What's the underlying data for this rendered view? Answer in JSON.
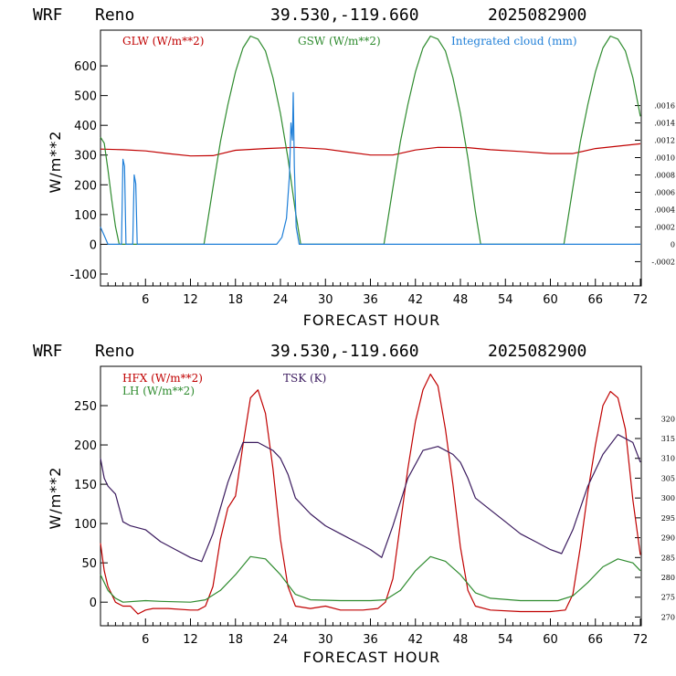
{
  "colors": {
    "red": "#c00000",
    "green": "#2e8b2e",
    "blue": "#1f7fd8",
    "purple": "#3a1a5e"
  },
  "chart_data": [
    {
      "type": "line",
      "header": {
        "model": "WRF",
        "site": "Reno",
        "coords": "39.530,-119.660",
        "date": "2025082900"
      },
      "xlabel": "FORECAST HOUR",
      "ylabel": "W/m**2",
      "xlim": [
        0,
        72
      ],
      "ylim": [
        -140,
        720
      ],
      "x_ticks": [
        "6",
        "12",
        "18",
        "24",
        "30",
        "36",
        "42",
        "48",
        "54",
        "60",
        "66",
        "72"
      ],
      "y_ticks": [
        "-100",
        "0",
        "100",
        "200",
        "300",
        "400",
        "500",
        "600"
      ],
      "y2_label": "",
      "y2lim": [
        -0.00048,
        0.00247
      ],
      "y2_ticks": [
        ".0016",
        ".0014",
        ".0012",
        ".0010",
        ".0008",
        ".0006",
        ".0004",
        ".0002",
        "0",
        "-.0002"
      ],
      "y2_tick_values": [
        0.0016,
        0.0014,
        0.0012,
        0.001,
        0.0008,
        0.0006,
        0.0004,
        0.0002,
        0,
        -0.0002
      ],
      "series": [
        {
          "name": "GLW (W/m**2)",
          "axis": "left",
          "color": "red",
          "points": [
            [
              0,
              320
            ],
            [
              3,
              318
            ],
            [
              6,
              314
            ],
            [
              9,
              305
            ],
            [
              12,
              297
            ],
            [
              15,
              298
            ],
            [
              18,
              316
            ],
            [
              22,
              322
            ],
            [
              26,
              326
            ],
            [
              30,
              320
            ],
            [
              33,
              310
            ],
            [
              36,
              300
            ],
            [
              39,
              300
            ],
            [
              42,
              317
            ],
            [
              45,
              326
            ],
            [
              49,
              325
            ],
            [
              52,
              318
            ],
            [
              56,
              312
            ],
            [
              60,
              305
            ],
            [
              63,
              305
            ],
            [
              66,
              322
            ],
            [
              69,
              330
            ],
            [
              72,
              338
            ]
          ]
        },
        {
          "name": "GSW (W/m**2)",
          "axis": "left",
          "color": "green",
          "points": [
            [
              0,
              360
            ],
            [
              0.5,
              340
            ],
            [
              1,
              250
            ],
            [
              1.5,
              150
            ],
            [
              2,
              60
            ],
            [
              2.5,
              0
            ],
            [
              13.8,
              0
            ],
            [
              15,
              190
            ],
            [
              16,
              345
            ],
            [
              17,
              470
            ],
            [
              18,
              580
            ],
            [
              19,
              660
            ],
            [
              20,
              700
            ],
            [
              21,
              690
            ],
            [
              22,
              650
            ],
            [
              23,
              560
            ],
            [
              24,
              440
            ],
            [
              25,
              290
            ],
            [
              26,
              110
            ],
            [
              26.7,
              0
            ],
            [
              37.8,
              0
            ],
            [
              39,
              190
            ],
            [
              40,
              345
            ],
            [
              41,
              470
            ],
            [
              42,
              580
            ],
            [
              43,
              660
            ],
            [
              44,
              700
            ],
            [
              45,
              690
            ],
            [
              46,
              650
            ],
            [
              47,
              560
            ],
            [
              48,
              440
            ],
            [
              49,
              290
            ],
            [
              50,
              110
            ],
            [
              50.7,
              0
            ],
            [
              61.8,
              0
            ],
            [
              63,
              190
            ],
            [
              64,
              345
            ],
            [
              65,
              470
            ],
            [
              66,
              580
            ],
            [
              67,
              660
            ],
            [
              68,
              700
            ],
            [
              69,
              690
            ],
            [
              70,
              650
            ],
            [
              71,
              560
            ],
            [
              72,
              430
            ]
          ]
        },
        {
          "name": "Integrated cloud (mm)",
          "axis": "right",
          "color": "blue",
          "points": [
            [
              0,
              0.0002
            ],
            [
              0.5,
              0.0001
            ],
            [
              1,
              0
            ],
            [
              2.8,
              0
            ],
            [
              3.0,
              0.00098
            ],
            [
              3.2,
              0.0009
            ],
            [
              3.4,
              0
            ],
            [
              4.3,
              0
            ],
            [
              4.5,
              0.0008
            ],
            [
              4.7,
              0.0007
            ],
            [
              4.9,
              0
            ],
            [
              23.5,
              0
            ],
            [
              24.2,
              8e-05
            ],
            [
              24.8,
              0.0003
            ],
            [
              25.2,
              0.0008
            ],
            [
              25.4,
              0.0014
            ],
            [
              25.6,
              0.0012
            ],
            [
              25.7,
              0.00175
            ],
            [
              25.85,
              0.0009
            ],
            [
              26.1,
              0.0002
            ],
            [
              26.5,
              0
            ],
            [
              72,
              0
            ]
          ]
        }
      ]
    },
    {
      "type": "line",
      "header": {
        "model": "WRF",
        "site": "Reno",
        "coords": "39.530,-119.660",
        "date": "2025082900"
      },
      "xlabel": "FORECAST HOUR",
      "ylabel": "W/m**2",
      "xlim": [
        0,
        72
      ],
      "ylim": [
        -30,
        300
      ],
      "x_ticks": [
        "6",
        "12",
        "18",
        "24",
        "30",
        "36",
        "42",
        "48",
        "54",
        "60",
        "66",
        "72"
      ],
      "y_ticks": [
        "0",
        "50",
        "100",
        "150",
        "200",
        "250"
      ],
      "y2lim": [
        267.8,
        333.2
      ],
      "y2_ticks": [
        "320",
        "315",
        "310",
        "305",
        "300",
        "295",
        "290",
        "285",
        "280",
        "275",
        "270"
      ],
      "y2_tick_values": [
        320,
        315,
        310,
        305,
        300,
        295,
        290,
        285,
        280,
        275,
        270
      ],
      "series": [
        {
          "name": "HFX (W/m**2)",
          "axis": "left",
          "color": "red",
          "points": [
            [
              0,
              75
            ],
            [
              0.5,
              40
            ],
            [
              1,
              20
            ],
            [
              2,
              0
            ],
            [
              3,
              -5
            ],
            [
              4,
              -5
            ],
            [
              5,
              -15
            ],
            [
              6,
              -10
            ],
            [
              7,
              -8
            ],
            [
              9,
              -8
            ],
            [
              12,
              -10
            ],
            [
              13,
              -10
            ],
            [
              14,
              -5
            ],
            [
              15,
              20
            ],
            [
              16,
              80
            ],
            [
              17,
              120
            ],
            [
              18,
              135
            ],
            [
              19,
              200
            ],
            [
              20,
              260
            ],
            [
              21,
              270
            ],
            [
              22,
              240
            ],
            [
              23,
              170
            ],
            [
              24,
              80
            ],
            [
              25,
              20
            ],
            [
              26,
              -5
            ],
            [
              28,
              -8
            ],
            [
              30,
              -5
            ],
            [
              32,
              -10
            ],
            [
              35,
              -10
            ],
            [
              37,
              -8
            ],
            [
              38,
              0
            ],
            [
              39,
              30
            ],
            [
              40,
              100
            ],
            [
              41,
              170
            ],
            [
              42,
              230
            ],
            [
              43,
              270
            ],
            [
              44,
              290
            ],
            [
              45,
              275
            ],
            [
              46,
              220
            ],
            [
              47,
              150
            ],
            [
              48,
              70
            ],
            [
              49,
              15
            ],
            [
              50,
              -5
            ],
            [
              52,
              -10
            ],
            [
              56,
              -12
            ],
            [
              60,
              -12
            ],
            [
              62,
              -10
            ],
            [
              63,
              10
            ],
            [
              64,
              70
            ],
            [
              65,
              140
            ],
            [
              66,
              200
            ],
            [
              67,
              250
            ],
            [
              68,
              268
            ],
            [
              69,
              260
            ],
            [
              70,
              220
            ],
            [
              71,
              130
            ],
            [
              72,
              60
            ]
          ]
        },
        {
          "name": "LH (W/m**2)",
          "axis": "left",
          "color": "green",
          "points": [
            [
              0,
              35
            ],
            [
              1,
              15
            ],
            [
              2,
              5
            ],
            [
              3,
              0
            ],
            [
              6,
              2
            ],
            [
              8,
              1
            ],
            [
              12,
              0
            ],
            [
              14,
              3
            ],
            [
              16,
              15
            ],
            [
              18,
              35
            ],
            [
              20,
              58
            ],
            [
              22,
              55
            ],
            [
              24,
              35
            ],
            [
              26,
              10
            ],
            [
              28,
              3
            ],
            [
              32,
              2
            ],
            [
              36,
              2
            ],
            [
              38,
              3
            ],
            [
              40,
              15
            ],
            [
              42,
              40
            ],
            [
              44,
              58
            ],
            [
              46,
              52
            ],
            [
              48,
              35
            ],
            [
              50,
              12
            ],
            [
              52,
              5
            ],
            [
              56,
              2
            ],
            [
              61,
              2
            ],
            [
              63,
              8
            ],
            [
              65,
              25
            ],
            [
              67,
              45
            ],
            [
              69,
              55
            ],
            [
              71,
              50
            ],
            [
              72,
              40
            ]
          ]
        },
        {
          "name": "TSK (K)",
          "axis": "right",
          "color": "purple",
          "points": [
            [
              0,
              310
            ],
            [
              0.5,
              305
            ],
            [
              1,
              303
            ],
            [
              2,
              301
            ],
            [
              3,
              294
            ],
            [
              4,
              293
            ],
            [
              6,
              292
            ],
            [
              8,
              289
            ],
            [
              10,
              287
            ],
            [
              12,
              285
            ],
            [
              13.5,
              284
            ],
            [
              15,
              291
            ],
            [
              17,
              304
            ],
            [
              19,
              314
            ],
            [
              21,
              314
            ],
            [
              23,
              312
            ],
            [
              24,
              310
            ],
            [
              25,
              306
            ],
            [
              26,
              300
            ],
            [
              28,
              296
            ],
            [
              30,
              293
            ],
            [
              32,
              291
            ],
            [
              34,
              289
            ],
            [
              36,
              287
            ],
            [
              37.5,
              285
            ],
            [
              39,
              293
            ],
            [
              41,
              305
            ],
            [
              43,
              312
            ],
            [
              45,
              313
            ],
            [
              47,
              311
            ],
            [
              48,
              309
            ],
            [
              49,
              305
            ],
            [
              50,
              300
            ],
            [
              52,
              297
            ],
            [
              54,
              294
            ],
            [
              56,
              291
            ],
            [
              58,
              289
            ],
            [
              60,
              287
            ],
            [
              61.5,
              286
            ],
            [
              63,
              292
            ],
            [
              65,
              303
            ],
            [
              67,
              311
            ],
            [
              69,
              316
            ],
            [
              71,
              314
            ],
            [
              72,
              309
            ]
          ]
        }
      ]
    }
  ]
}
